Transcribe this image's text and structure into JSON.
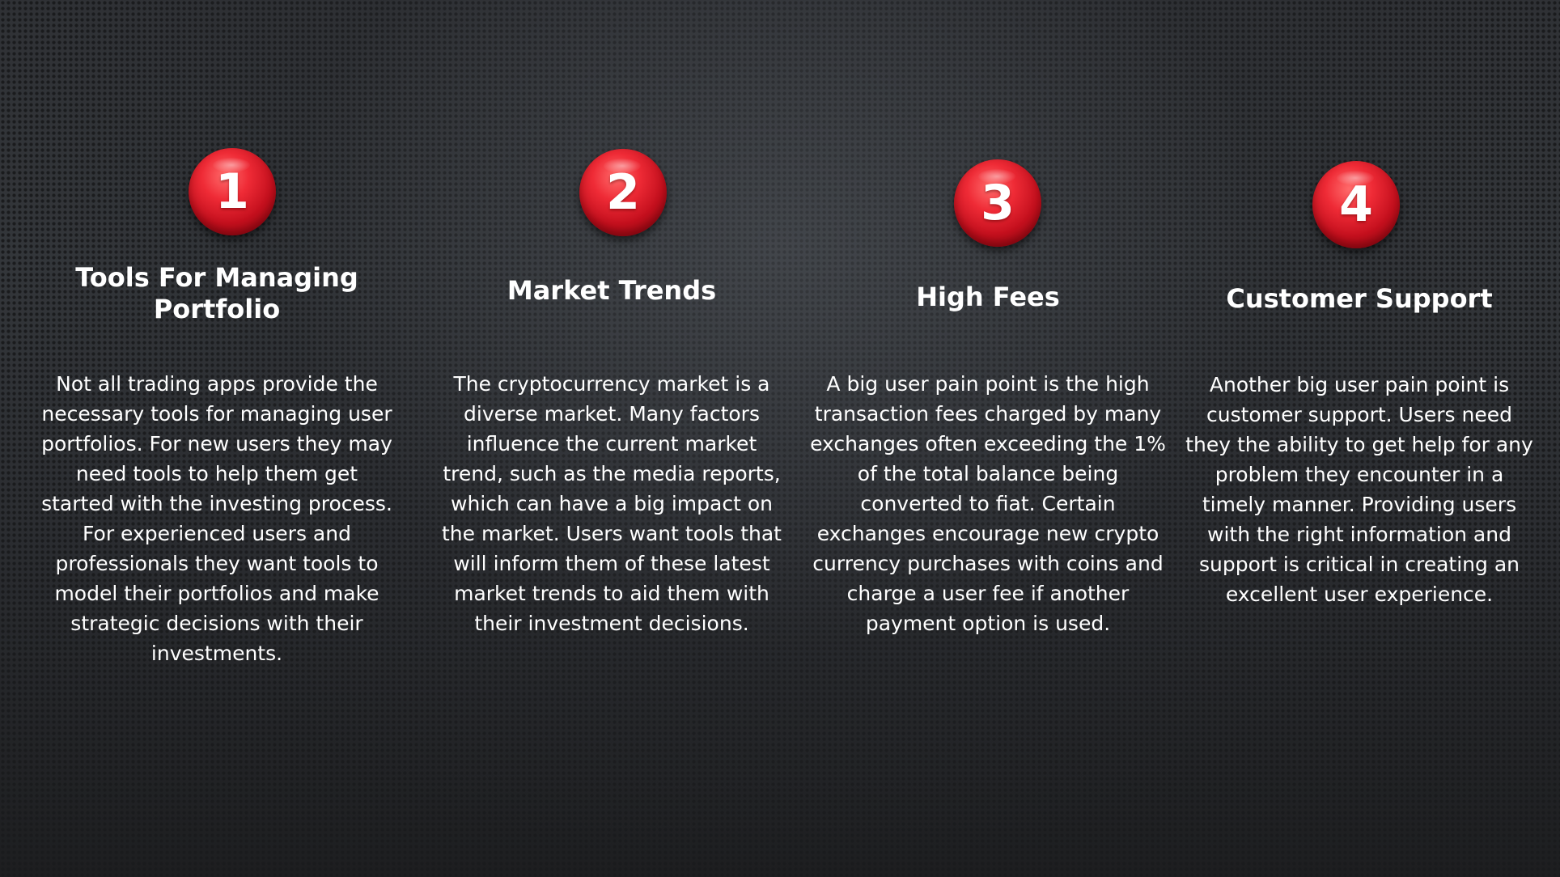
{
  "steps": [
    {
      "number": "1",
      "title": "Tools For Managing Portfolio",
      "description": "Not all trading apps provide the necessary tools for managing user portfolios. For new users they may need tools to help them get started with the investing process. For experienced users and professionals they want tools to model their portfolios and make strategic decisions with their investments."
    },
    {
      "number": "2",
      "title": "Market Trends",
      "description": "The cryptocurrency market is a diverse market. Many factors influence the current market trend, such as the media reports, which can have a big impact on the market. Users want tools that will inform them of these latest market trends to aid them with their investment decisions."
    },
    {
      "number": "3",
      "title": "High Fees",
      "description": "A big user pain point is the high transaction fees charged by many exchanges often exceeding the 1% of the total balance being converted to fiat. Certain exchanges encourage new crypto currency purchases with coins and charge a user fee if another payment option is used."
    },
    {
      "number": "4",
      "title": "Customer Support",
      "description": "Another big user pain point is customer support. Users need they the ability to get help for any problem they encounter in a timely manner. Providing users with the right information and support is critical in creating an excellent user experience."
    }
  ],
  "colors": {
    "badge": "#e0202c",
    "text": "#ffffff",
    "background": "#2b2d30"
  }
}
